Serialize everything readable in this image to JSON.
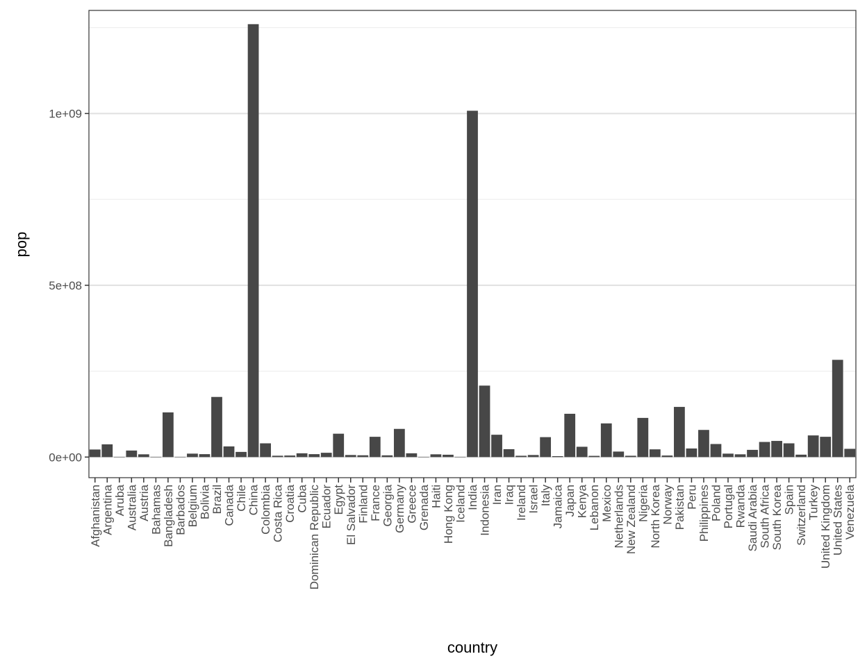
{
  "chart_data": {
    "type": "bar",
    "xlabel": "country",
    "ylabel": "pop",
    "ylim": [
      -60000000,
      1300000000
    ],
    "yticks": [
      0,
      500000000,
      1000000000
    ],
    "ytick_labels": [
      "0e+00",
      "5e+08",
      "1e+09"
    ],
    "grid": true,
    "bar_color": "#474747",
    "categories": [
      "Afghanistan",
      "Argentina",
      "Aruba",
      "Australia",
      "Austria",
      "Bahamas",
      "Bangladesh",
      "Barbados",
      "Belgium",
      "Bolivia",
      "Brazil",
      "Canada",
      "Chile",
      "China",
      "Colombia",
      "Costa Rica",
      "Croatia",
      "Cuba",
      "Dominican Republic",
      "Ecuador",
      "Egypt",
      "El Salvador",
      "Finland",
      "France",
      "Georgia",
      "Germany",
      "Greece",
      "Grenada",
      "Haiti",
      "Hong Kong",
      "Iceland",
      "India",
      "Indonesia",
      "Iran",
      "Iraq",
      "Ireland",
      "Israel",
      "Italy",
      "Jamaica",
      "Japan",
      "Kenya",
      "Lebanon",
      "Mexico",
      "Netherlands",
      "New Zealand",
      "Nigeria",
      "North Korea",
      "Norway",
      "Pakistan",
      "Peru",
      "Philippines",
      "Poland",
      "Portugal",
      "Rwanda",
      "Saudi Arabia",
      "South Africa",
      "South Korea",
      "Spain",
      "Switzerland",
      "Turkey",
      "United Kingdom",
      "United States",
      "Venezuela"
    ],
    "values": [
      22000000,
      37000000,
      100000,
      19000000,
      8000000,
      300000,
      130000000,
      300000,
      10000000,
      8500000,
      175000000,
      31000000,
      15000000,
      1260000000,
      40000000,
      3900000,
      4500000,
      11000000,
      8500000,
      12500000,
      68000000,
      6000000,
      5200000,
      59000000,
      5000000,
      82000000,
      11000000,
      100000,
      8000000,
      6800000,
      300000,
      1008000000,
      208000000,
      65000000,
      23000000,
      3800000,
      6000000,
      58000000,
      2600000,
      126000000,
      30000000,
      3500000,
      98000000,
      16000000,
      3800000,
      114000000,
      22500000,
      4500000,
      146000000,
      25000000,
      79000000,
      38000000,
      10000000,
      8000000,
      21000000,
      44000000,
      47000000,
      40000000,
      7000000,
      63000000,
      59000000,
      283000000,
      24000000
    ]
  }
}
